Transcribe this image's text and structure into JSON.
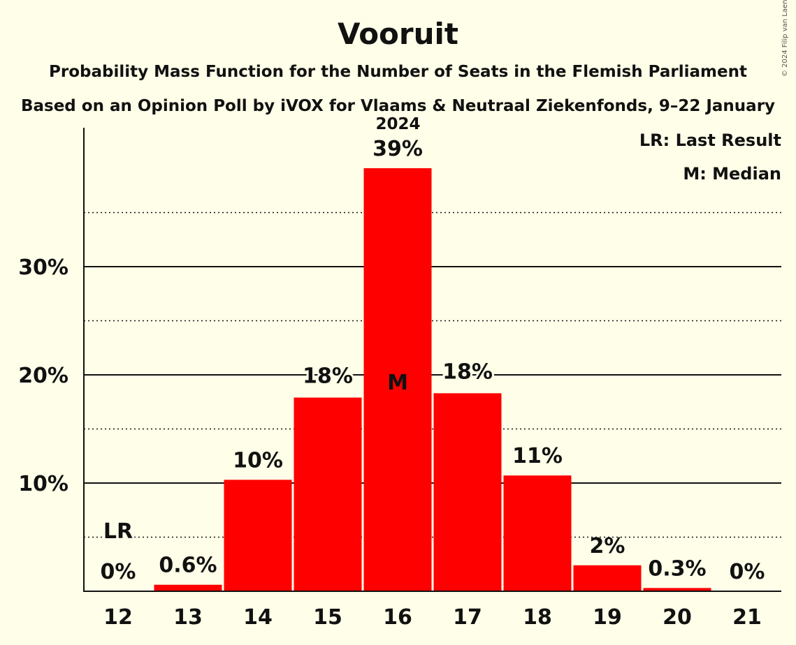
{
  "title": "Vooruit",
  "subtitle": "Probability Mass Function for the Number of Seats in the Flemish Parliament",
  "subtitle2": "Based on an Opinion Poll by iVOX for Vlaams & Neutraal Ziekenfonds, 9–22 January 2024",
  "copyright": "© 2024 Filip van Laenen",
  "legend": {
    "last_result": "LR: Last Result",
    "median": "M: Median"
  },
  "chart_data": {
    "type": "bar",
    "title": "Vooruit",
    "xlabel": "",
    "ylabel": "",
    "categories": [
      "12",
      "13",
      "14",
      "15",
      "16",
      "17",
      "18",
      "19",
      "20",
      "21"
    ],
    "values": [
      0,
      0.6,
      10.3,
      17.9,
      39.1,
      18.3,
      10.7,
      2.4,
      0.3,
      0
    ],
    "value_labels": [
      "0%",
      "0.6%",
      "10%",
      "18%",
      "39%",
      "18%",
      "11%",
      "2%",
      "0.3%",
      "0%"
    ],
    "ylim": [
      0,
      42.6
    ],
    "yticks": [
      10,
      20,
      30
    ],
    "ytick_labels": [
      "10%",
      "20%",
      "30%"
    ],
    "minor_gridlines": [
      5,
      15,
      25,
      35
    ],
    "last_result_category": "12",
    "last_result_marker": "LR",
    "median_category": "16",
    "median_marker": "M",
    "bar_color": "#ff0000",
    "grid": true,
    "legend_position": "top-right"
  }
}
